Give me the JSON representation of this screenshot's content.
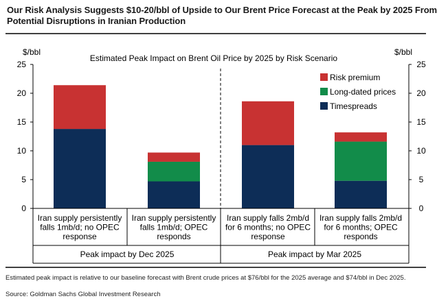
{
  "header": {
    "title_line1": "Our Risk Analysis Suggests $10-20/bbl of Upside to Our Brent Price Forecast at the Peak by 2025 From",
    "title_line2": "Potential Disruptions in Iranian Production"
  },
  "footer": {
    "note": "Estimated peak impact is relative to our baseline forecast with Brent crude prices at $76/bbl for the 2025 average and $74/bbl in Dec 2025.",
    "source": "Source: Goldman Sachs Global Investment Research"
  },
  "colors": {
    "risk_premium": "#c83232",
    "long_dated": "#128c4a",
    "timespreads": "#0d2d57"
  },
  "chart_data": {
    "type": "bar",
    "stacked": true,
    "title": "Estimated Peak Impact on Brent Oil Price by 2025 by Risk Scenario",
    "ylabel_left": "$/bbl",
    "ylabel_right": "$/bbl",
    "ylim": [
      0,
      25
    ],
    "yticks": [
      "0",
      "5",
      "10",
      "15",
      "20",
      "25"
    ],
    "legend_position": "top-right",
    "categories": [
      [
        "Iran supply persistently",
        "falls 1mb/d; no OPEC",
        "response"
      ],
      [
        "Iran supply persistently",
        "falls 1mb/d; OPEC",
        "responds"
      ],
      [
        "Iran supply falls 2mb/d",
        "for 6 months; no OPEC",
        "response"
      ],
      [
        "Iran supply falls 2mb/d",
        "for 6 months; OPEC",
        "responds"
      ]
    ],
    "groups": [
      {
        "label": "Peak impact by Dec 2025",
        "categories": [
          0,
          1
        ]
      },
      {
        "label": "Peak impact by Mar 2025",
        "categories": [
          2,
          3
        ]
      }
    ],
    "series": [
      {
        "name": "Timespreads",
        "color": "#0d2d57",
        "values": [
          13.8,
          4.7,
          11.0,
          4.8
        ]
      },
      {
        "name": "Long-dated prices",
        "color": "#128c4a",
        "values": [
          0,
          3.4,
          0,
          6.8
        ]
      },
      {
        "name": "Risk premium",
        "color": "#c83232",
        "values": [
          7.6,
          1.6,
          7.6,
          1.6
        ]
      }
    ],
    "legend_order": [
      "Risk premium",
      "Long-dated prices",
      "Timespreads"
    ]
  }
}
